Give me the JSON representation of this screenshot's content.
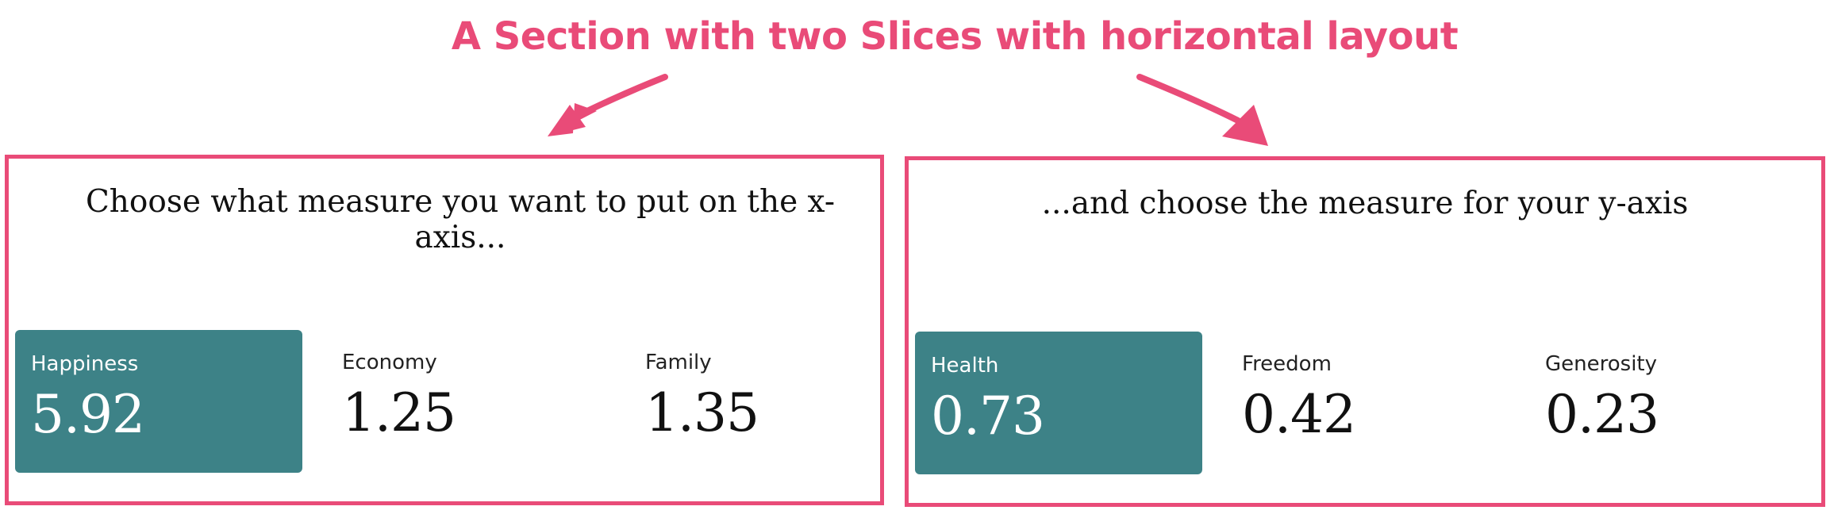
{
  "annotation": {
    "title": "A Section with two Slices with horizontal layout"
  },
  "colors": {
    "accent": "#e94b78",
    "selected_bg": "#3d8287"
  },
  "slices": [
    {
      "heading": "Choose what measure you want to put on the x-axis...",
      "metrics": [
        {
          "label": "Happiness",
          "value": "5.92",
          "selected": true
        },
        {
          "label": "Economy",
          "value": "1.25",
          "selected": false
        },
        {
          "label": "Family",
          "value": "1.35",
          "selected": false
        }
      ]
    },
    {
      "heading": "...and choose the measure for your y-axis",
      "metrics": [
        {
          "label": "Health",
          "value": "0.73",
          "selected": true
        },
        {
          "label": "Freedom",
          "value": "0.42",
          "selected": false
        },
        {
          "label": "Generosity",
          "value": "0.23",
          "selected": false
        }
      ]
    }
  ]
}
